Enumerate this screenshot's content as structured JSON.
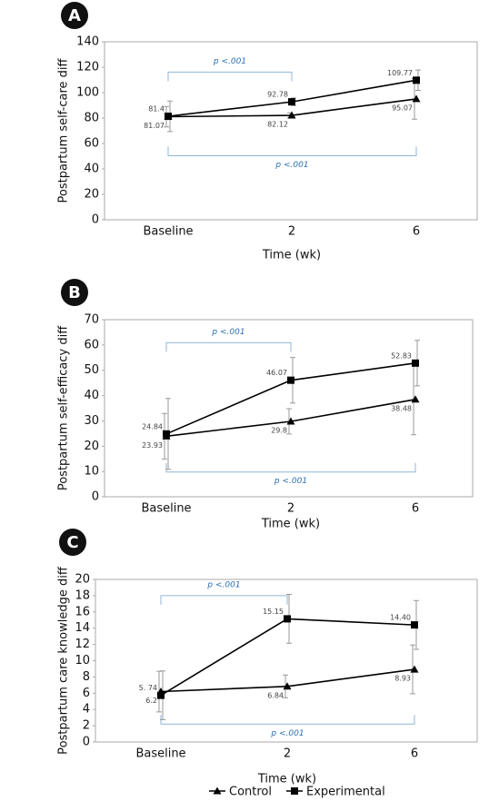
{
  "chart_data": [
    {
      "type": "line",
      "panel_label": "A",
      "ylabel": "Postpartum self-care diff",
      "xlabel": "Time (wk)",
      "categories": [
        "Baseline",
        "2",
        "6"
      ],
      "ylim": [
        0,
        140
      ],
      "yticks": [
        0,
        20,
        40,
        60,
        80,
        100,
        120,
        140
      ],
      "series": [
        {
          "name": "Control",
          "color": "#000000",
          "marker": "triangle",
          "values": [
            81.07,
            82.12,
            95.07
          ],
          "errors": [
            8,
            2,
            16
          ]
        },
        {
          "name": "Experimental",
          "color": "#000000",
          "marker": "square",
          "values": [
            81.4,
            92.78,
            109.77
          ],
          "errors": [
            12,
            3,
            8
          ]
        }
      ],
      "annotations": [
        "p <.001",
        "p <.001"
      ]
    },
    {
      "type": "line",
      "panel_label": "B",
      "ylabel": "Postpartum self-efficacy diff",
      "xlabel": "Time (wk)",
      "categories": [
        "Baseline",
        "2",
        "6"
      ],
      "ylim": [
        0,
        70
      ],
      "yticks": [
        0,
        10,
        20,
        30,
        40,
        50,
        60,
        70
      ],
      "series": [
        {
          "name": "Control",
          "color": "#000000",
          "marker": "triangle",
          "values": [
            23.93,
            29.8,
            38.48
          ],
          "errors": [
            9,
            5,
            14
          ]
        },
        {
          "name": "Experimental",
          "color": "#000000",
          "marker": "square",
          "values": [
            24.84,
            46.07,
            52.83
          ],
          "errors": [
            14,
            9,
            9
          ]
        }
      ],
      "annotations": [
        "p <.001",
        "p <.001"
      ]
    },
    {
      "type": "line",
      "panel_label": "C",
      "ylabel": "Postpartum care knowledge diff",
      "xlabel": "Time (wk)",
      "categories": [
        "Baseline",
        "2",
        "6"
      ],
      "ylim": [
        0,
        20
      ],
      "yticks": [
        0,
        2,
        4,
        6,
        8,
        10,
        12,
        14,
        16,
        18,
        20
      ],
      "series": [
        {
          "name": "Control",
          "color": "#000000",
          "marker": "triangle",
          "values": [
            6.2,
            6.84,
            8.93
          ],
          "errors": [
            2.5,
            1.4,
            3
          ]
        },
        {
          "name": "Experimental",
          "color": "#000000",
          "marker": "square",
          "values": [
            5.74,
            15.15,
            14.4
          ],
          "value_labels": [
            "5. 74",
            "15.15",
            "14.40"
          ],
          "errors": [
            3,
            3,
            3
          ]
        }
      ],
      "annotations": [
        "p <.001",
        "p <.001"
      ]
    }
  ]
}
